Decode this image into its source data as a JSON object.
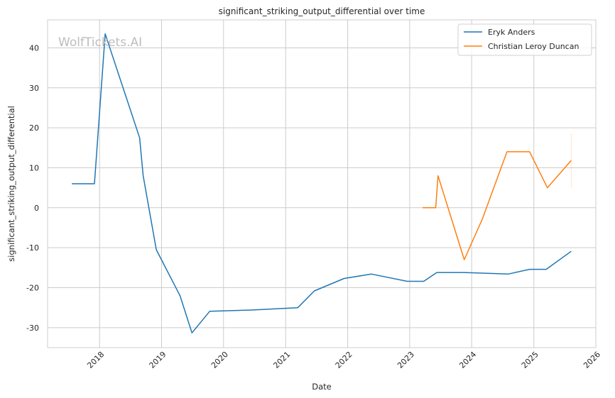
{
  "watermark": "WolfTickets.AI",
  "chart_data": {
    "type": "line",
    "title": "significant_striking_output_differential over time",
    "xlabel": "Date",
    "ylabel": "significant_striking_output_differential",
    "x_axis": "date",
    "xlim": [
      "2017-03-01",
      "2026-01-01"
    ],
    "ylim": [
      -35,
      47
    ],
    "x_ticks": [
      "2018",
      "2019",
      "2020",
      "2021",
      "2022",
      "2023",
      "2024",
      "2025",
      "2026"
    ],
    "y_ticks": [
      -30,
      -20,
      -10,
      0,
      10,
      20,
      30,
      40
    ],
    "grid": true,
    "legend": "top-right",
    "series": [
      {
        "name": "Eryk Anders",
        "color": "#1f77b4",
        "points": [
          [
            "2017-07-22",
            6.0
          ],
          [
            "2017-12-02",
            6.0
          ],
          [
            "2018-02-03",
            43.5
          ],
          [
            "2018-08-25",
            17.5
          ],
          [
            "2018-09-15",
            8.0
          ],
          [
            "2018-12-01",
            -10.5
          ],
          [
            "2019-04-20",
            -22.0
          ],
          [
            "2019-06-29",
            -31.3
          ],
          [
            "2019-10-12",
            -25.9
          ],
          [
            "2020-06-13",
            -25.6
          ],
          [
            "2021-03-13",
            -25.0
          ],
          [
            "2021-06-19",
            -20.8
          ],
          [
            "2021-12-11",
            -17.7
          ],
          [
            "2022-05-21",
            -16.6
          ],
          [
            "2022-12-17",
            -18.4
          ],
          [
            "2023-03-25",
            -18.4
          ],
          [
            "2023-06-10",
            -16.2
          ],
          [
            "2023-11-18",
            -16.2
          ],
          [
            "2024-08-03",
            -16.6
          ],
          [
            "2024-12-07",
            -15.4
          ],
          [
            "2025-03-15",
            -15.4
          ],
          [
            "2025-08-09",
            -10.9
          ]
        ]
      },
      {
        "name": "Christian Leroy Duncan",
        "color": "#ff7f0e",
        "points": [
          [
            "2023-03-18",
            0.0
          ],
          [
            "2023-06-03",
            0.0
          ],
          [
            "2023-06-17",
            8.0
          ],
          [
            "2023-11-18",
            -13.0
          ],
          [
            "2024-03-02",
            -3.0
          ],
          [
            "2024-07-27",
            14.0
          ],
          [
            "2024-12-07",
            14.0
          ],
          [
            "2025-03-22",
            5.0
          ],
          [
            "2025-08-09",
            11.8
          ]
        ],
        "band": {
          "x": "2025-08-09",
          "low": 5.0,
          "high": 18.5
        }
      }
    ]
  }
}
